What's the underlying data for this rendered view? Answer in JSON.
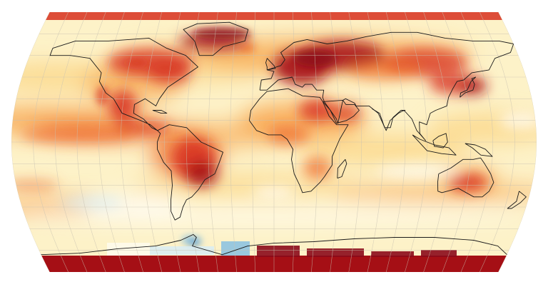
{
  "map": {
    "projection": "robinson",
    "colors": {
      "background": "#ffffff",
      "ocean_base": "#fdf2c8",
      "neutral": "#fefbf0",
      "warm_light": "#fbd78b",
      "warm_mid": "#f7a24a",
      "warm_orange": "#ee6a2a",
      "warm_red": "#d7301f",
      "warm_dark": "#a50f15",
      "warm_darkest": "#8b0a1a",
      "cool_light": "#d6ecf7",
      "cool_mid": "#7fbde3",
      "cool_dark": "#4a90c8",
      "graticule": "#c9c2b0",
      "coastline": "#1a1a1a"
    }
  }
}
